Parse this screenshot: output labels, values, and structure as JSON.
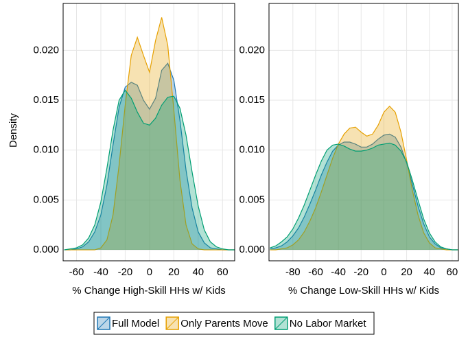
{
  "chart_data": [
    {
      "type": "area",
      "xlabel": "% Change High-Skill HHs w/ Kids",
      "ylabel": "Density",
      "xlim": [
        -71,
        70
      ],
      "ylim": [
        -0.0011,
        0.0247
      ],
      "grid": true,
      "xticks": [
        -60,
        -40,
        -20,
        0,
        20,
        40,
        60
      ],
      "yticks": [
        {
          "value": 0,
          "label": "0.000"
        },
        {
          "value": 0.005,
          "label": "0.005"
        },
        {
          "value": 0.01,
          "label": "0.010"
        },
        {
          "value": 0.015,
          "label": "0.015"
        },
        {
          "value": 0.02,
          "label": "0.020"
        }
      ],
      "x": [
        -70,
        -65,
        -60,
        -55,
        -50,
        -45,
        -40,
        -35,
        -30,
        -25,
        -20,
        -15,
        -10,
        -5,
        0,
        5,
        10,
        15,
        20,
        25,
        30,
        35,
        40,
        45,
        50,
        55,
        60,
        65,
        70
      ],
      "series": [
        {
          "name": "Full Model",
          "color": "#1f77b4",
          "values": [
            0,
            0,
            0.0001,
            0.0003,
            0.0008,
            0.0018,
            0.0035,
            0.0065,
            0.0105,
            0.0143,
            0.0163,
            0.0168,
            0.0165,
            0.015,
            0.0141,
            0.0152,
            0.018,
            0.0187,
            0.017,
            0.013,
            0.008,
            0.0042,
            0.0018,
            0.0007,
            0.0002,
            0.0001,
            0,
            0,
            0
          ]
        },
        {
          "name": "Only Parents Move",
          "color": "#e6a000",
          "values": [
            0,
            0,
            0,
            0,
            0,
            0,
            0.0002,
            0.001,
            0.0035,
            0.0085,
            0.0145,
            0.0195,
            0.0213,
            0.0195,
            0.0178,
            0.021,
            0.0233,
            0.0205,
            0.014,
            0.007,
            0.0025,
            0.0006,
            0.0001,
            0,
            0,
            0,
            0,
            0,
            0
          ]
        },
        {
          "name": "No Labor Market",
          "color": "#009e73",
          "values": [
            0,
            0.0001,
            0.0002,
            0.0005,
            0.0012,
            0.0025,
            0.0048,
            0.0082,
            0.012,
            0.015,
            0.016,
            0.0152,
            0.0138,
            0.0127,
            0.0125,
            0.0132,
            0.0145,
            0.0153,
            0.0154,
            0.0142,
            0.0115,
            0.0078,
            0.0044,
            0.002,
            0.0008,
            0.0003,
            0.0001,
            0,
            0
          ]
        }
      ]
    },
    {
      "type": "area",
      "xlabel": "% Change Low-Skill HHs w/ Kids",
      "xlim": [
        -101,
        65.5
      ],
      "ylim": [
        -0.0011,
        0.0247
      ],
      "grid": true,
      "xticks": [
        -80,
        -60,
        -40,
        -20,
        0,
        20,
        40,
        60
      ],
      "yticks": [
        {
          "value": 0,
          "label": "0.000"
        },
        {
          "value": 0.005,
          "label": "0.005"
        },
        {
          "value": 0.01,
          "label": "0.010"
        },
        {
          "value": 0.015,
          "label": "0.015"
        },
        {
          "value": 0.02,
          "label": "0.020"
        }
      ],
      "x": [
        -100,
        -95,
        -90,
        -85,
        -80,
        -75,
        -70,
        -65,
        -60,
        -55,
        -50,
        -45,
        -40,
        -35,
        -30,
        -25,
        -20,
        -15,
        -10,
        -5,
        0,
        5,
        10,
        15,
        20,
        25,
        30,
        35,
        40,
        45,
        50,
        55,
        60,
        65
      ],
      "series": [
        {
          "color": "#1f77b4",
          "values": [
            0.0001,
            0.0002,
            0.0004,
            0.0008,
            0.0014,
            0.0022,
            0.0033,
            0.0046,
            0.006,
            0.0075,
            0.0088,
            0.0099,
            0.0105,
            0.0108,
            0.0108,
            0.0106,
            0.0103,
            0.0103,
            0.0106,
            0.0111,
            0.0115,
            0.0116,
            0.0113,
            0.0103,
            0.0087,
            0.0066,
            0.0044,
            0.0026,
            0.0013,
            0.0006,
            0.0002,
            0.0001,
            0,
            0
          ]
        },
        {
          "color": "#e6a000",
          "values": [
            0,
            0,
            0.0001,
            0.0002,
            0.0005,
            0.001,
            0.0018,
            0.0029,
            0.0042,
            0.0058,
            0.0075,
            0.0092,
            0.0106,
            0.0116,
            0.0122,
            0.0123,
            0.0118,
            0.0114,
            0.0116,
            0.0125,
            0.0138,
            0.0144,
            0.0138,
            0.0118,
            0.009,
            0.006,
            0.0035,
            0.0017,
            0.0007,
            0.0002,
            0.0001,
            0,
            0,
            0
          ]
        },
        {
          "color": "#009e73",
          "values": [
            0.0002,
            0.0004,
            0.0008,
            0.0013,
            0.0021,
            0.0032,
            0.0045,
            0.006,
            0.0075,
            0.0089,
            0.01,
            0.0105,
            0.0106,
            0.0104,
            0.0101,
            0.0099,
            0.0099,
            0.01,
            0.0102,
            0.0105,
            0.0106,
            0.0107,
            0.0105,
            0.0099,
            0.0088,
            0.007,
            0.005,
            0.0031,
            0.0017,
            0.0008,
            0.0003,
            0.0001,
            0,
            0
          ]
        }
      ]
    }
  ]
}
